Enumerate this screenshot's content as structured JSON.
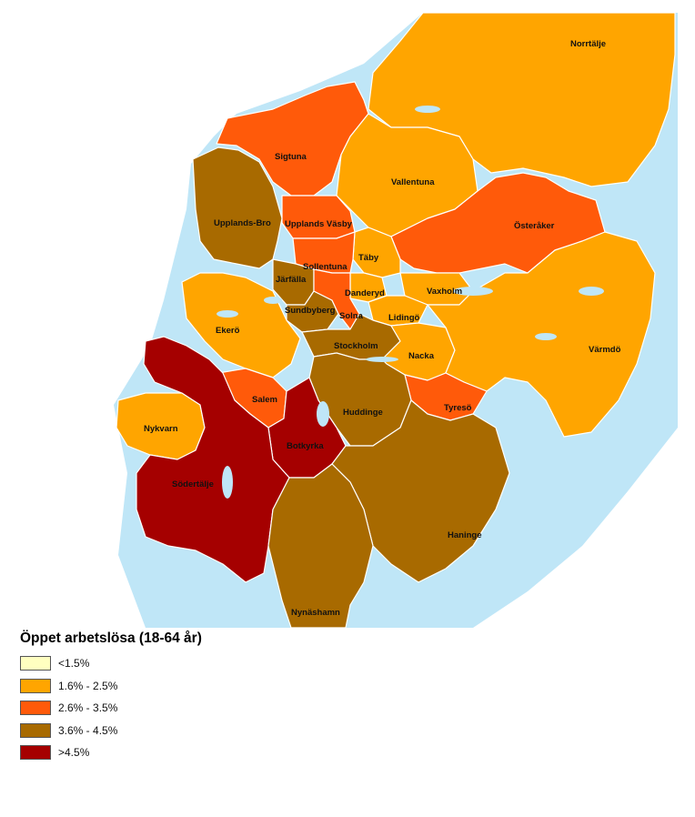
{
  "legend": {
    "title": "Öppet arbetslösa (18-64 år)",
    "classes": [
      {
        "label": "<1.5%",
        "color": "#FFFFC0"
      },
      {
        "label": "1.6% - 2.5%",
        "color": "#FFA500"
      },
      {
        "label": "2.6% - 3.5%",
        "color": "#FF5A0A"
      },
      {
        "label": "3.6% - 4.5%",
        "color": "#A86A00"
      },
      {
        "label": ">4.5%",
        "color": "#A50000"
      }
    ]
  },
  "colors": {
    "water": "#BFE6F7",
    "border": "#FFFFFF"
  },
  "municipalities": [
    {
      "name": "Norrtälje",
      "class": "1.6% - 2.5%"
    },
    {
      "name": "Sigtuna",
      "class": "2.6% - 3.5%"
    },
    {
      "name": "Vallentuna",
      "class": "1.6% - 2.5%"
    },
    {
      "name": "Upplands-Bro",
      "class": "3.6% - 4.5%"
    },
    {
      "name": "Upplands Väsby",
      "class": "2.6% - 3.5%"
    },
    {
      "name": "Österåker",
      "class": "2.6% - 3.5%"
    },
    {
      "name": "Täby",
      "class": "1.6% - 2.5%"
    },
    {
      "name": "Sollentuna",
      "class": "2.6% - 3.5%"
    },
    {
      "name": "Järfälla",
      "class": "3.6% - 4.5%"
    },
    {
      "name": "Danderyd",
      "class": "1.6% - 2.5%"
    },
    {
      "name": "Vaxholm",
      "class": "1.6% - 2.5%"
    },
    {
      "name": "Sundbyberg",
      "class": "3.6% - 4.5%"
    },
    {
      "name": "Solna",
      "class": "2.6% - 3.5%"
    },
    {
      "name": "Lidingö",
      "class": "1.6% - 2.5%"
    },
    {
      "name": "Ekerö",
      "class": "1.6% - 2.5%"
    },
    {
      "name": "Stockholm",
      "class": "3.6% - 4.5%"
    },
    {
      "name": "Nacka",
      "class": "1.6% - 2.5%"
    },
    {
      "name": "Värmdö",
      "class": "1.6% - 2.5%"
    },
    {
      "name": "Salem",
      "class": "2.6% - 3.5%"
    },
    {
      "name": "Tyresö",
      "class": "2.6% - 3.5%"
    },
    {
      "name": "Huddinge",
      "class": "3.6% - 4.5%"
    },
    {
      "name": "Nykvarn",
      "class": "1.6% - 2.5%"
    },
    {
      "name": "Botkyrka",
      "class": ">4.5%"
    },
    {
      "name": "Södertälje",
      "class": ">4.5%"
    },
    {
      "name": "Haninge",
      "class": "3.6% - 4.5%"
    },
    {
      "name": "Nynäshamn",
      "class": "3.6% - 4.5%"
    }
  ]
}
